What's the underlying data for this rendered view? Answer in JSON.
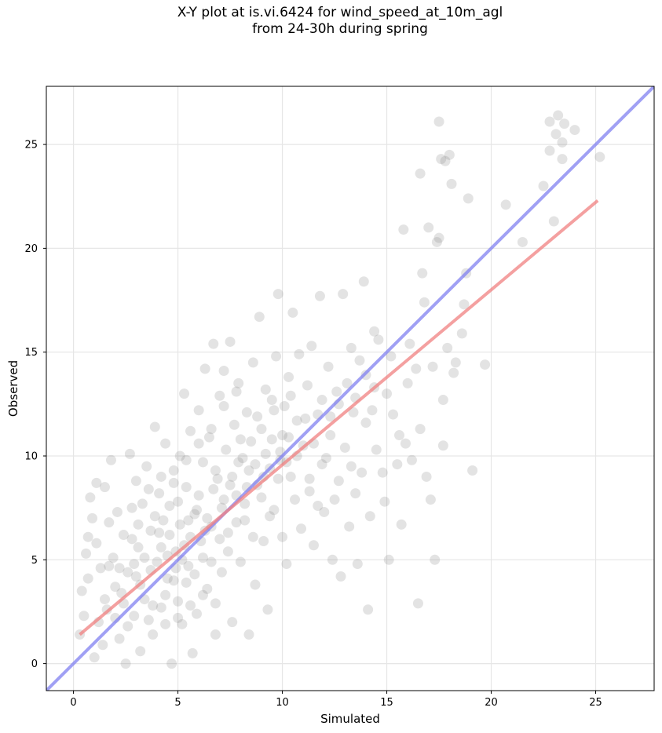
{
  "chart_data": {
    "type": "scatter",
    "title": "X-Y plot at is.vi.6424 for wind_speed_at_10m_agl\nfrom 24-30h during spring",
    "xlabel": "Simulated",
    "ylabel": "Observed",
    "xlim": [
      -1.3,
      27.8
    ],
    "ylim": [
      -1.3,
      27.8
    ],
    "xticks": [
      0,
      5,
      10,
      15,
      20,
      25
    ],
    "yticks": [
      0,
      5,
      10,
      15,
      20,
      25
    ],
    "grid": true,
    "legend": "none",
    "point_color": "#808080",
    "series": [
      {
        "points": [
          [
            0.3,
            1.4
          ],
          [
            0.4,
            3.5
          ],
          [
            0.5,
            2.3
          ],
          [
            0.6,
            5.3
          ],
          [
            0.7,
            6.1
          ],
          [
            0.8,
            8.0
          ],
          [
            0.9,
            7.0
          ],
          [
            1.0,
            0.3
          ],
          [
            1.1,
            8.7
          ],
          [
            1.3,
            4.6
          ],
          [
            1.5,
            8.5
          ],
          [
            1.6,
            2.6
          ],
          [
            1.7,
            6.8
          ],
          [
            1.8,
            9.8
          ],
          [
            2.0,
            3.7
          ],
          [
            2.1,
            7.3
          ],
          [
            2.2,
            1.2
          ],
          [
            2.4,
            6.2
          ],
          [
            2.5,
            0.0
          ],
          [
            2.6,
            4.4
          ],
          [
            2.7,
            10.1
          ],
          [
            2.9,
            2.3
          ],
          [
            3.0,
            8.8
          ],
          [
            3.1,
            5.6
          ],
          [
            3.2,
            0.6
          ],
          [
            3.3,
            7.7
          ],
          [
            3.4,
            3.1
          ],
          [
            3.5,
            9.5
          ],
          [
            3.7,
            6.4
          ],
          [
            3.8,
            1.4
          ],
          [
            3.9,
            11.4
          ],
          [
            4.0,
            4.9
          ],
          [
            4.1,
            8.2
          ],
          [
            4.2,
            2.7
          ],
          [
            4.3,
            6.9
          ],
          [
            4.4,
            10.6
          ],
          [
            4.5,
            4.1
          ],
          [
            4.6,
            7.6
          ],
          [
            4.7,
            0.0
          ],
          [
            4.8,
            9.3
          ],
          [
            4.9,
            5.4
          ],
          [
            5.0,
            3.0
          ],
          [
            5.1,
            10.0
          ],
          [
            5.1,
            6.7
          ],
          [
            5.2,
            1.9
          ],
          [
            5.3,
            13.0
          ],
          [
            5.4,
            8.5
          ],
          [
            5.5,
            4.7
          ],
          [
            5.6,
            11.2
          ],
          [
            5.7,
            0.5
          ],
          [
            5.8,
            7.2
          ],
          [
            5.9,
            2.4
          ],
          [
            6.0,
            12.2
          ],
          [
            6.1,
            5.9
          ],
          [
            6.2,
            9.7
          ],
          [
            6.3,
            14.2
          ],
          [
            6.4,
            3.6
          ],
          [
            6.5,
            10.9
          ],
          [
            6.6,
            6.6
          ],
          [
            6.7,
            15.4
          ],
          [
            6.8,
            1.4
          ],
          [
            6.9,
            8.9
          ],
          [
            7.0,
            12.9
          ],
          [
            7.1,
            4.4
          ],
          [
            7.2,
            14.1
          ],
          [
            7.3,
            10.3
          ],
          [
            7.4,
            6.3
          ],
          [
            7.5,
            15.5
          ],
          [
            7.6,
            2.0
          ],
          [
            7.7,
            11.5
          ],
          [
            7.8,
            8.1
          ],
          [
            7.9,
            13.5
          ],
          [
            8.0,
            4.9
          ],
          [
            8.1,
            9.9
          ],
          [
            8.2,
            6.9
          ],
          [
            8.3,
            12.1
          ],
          [
            8.4,
            1.4
          ],
          [
            8.5,
            10.7
          ],
          [
            8.6,
            14.5
          ],
          [
            8.7,
            3.8
          ],
          [
            8.8,
            8.6
          ],
          [
            8.9,
            16.7
          ],
          [
            9.0,
            11.3
          ],
          [
            9.1,
            5.9
          ],
          [
            9.2,
            13.2
          ],
          [
            9.3,
            2.6
          ],
          [
            9.4,
            9.4
          ],
          [
            9.5,
            12.7
          ],
          [
            9.6,
            7.4
          ],
          [
            9.7,
            14.8
          ],
          [
            9.8,
            17.8
          ],
          [
            9.9,
            10.2
          ],
          [
            10.0,
            6.1
          ],
          [
            10.1,
            12.4
          ],
          [
            10.2,
            4.8
          ],
          [
            10.3,
            13.8
          ],
          [
            10.4,
            9.0
          ],
          [
            10.5,
            16.9
          ],
          [
            10.6,
            7.9
          ],
          [
            10.7,
            11.7
          ],
          [
            10.8,
            14.9
          ],
          [
            10.9,
            6.5
          ],
          [
            11.0,
            10.5
          ],
          [
            11.2,
            13.4
          ],
          [
            11.3,
            8.3
          ],
          [
            11.4,
            15.3
          ],
          [
            11.5,
            5.7
          ],
          [
            11.7,
            12.0
          ],
          [
            11.8,
            17.7
          ],
          [
            11.9,
            9.6
          ],
          [
            12.0,
            7.3
          ],
          [
            12.2,
            14.3
          ],
          [
            12.3,
            11.0
          ],
          [
            12.4,
            5.0
          ],
          [
            12.6,
            13.1
          ],
          [
            12.7,
            8.8
          ],
          [
            12.8,
            4.2
          ],
          [
            12.9,
            17.8
          ],
          [
            13.0,
            10.4
          ],
          [
            13.2,
            6.6
          ],
          [
            13.3,
            15.2
          ],
          [
            13.4,
            12.1
          ],
          [
            13.5,
            8.2
          ],
          [
            13.6,
            4.8
          ],
          [
            13.7,
            14.6
          ],
          [
            13.8,
            9.2
          ],
          [
            13.9,
            18.4
          ],
          [
            14.0,
            11.6
          ],
          [
            14.1,
            2.6
          ],
          [
            14.2,
            7.1
          ],
          [
            14.3,
            12.2
          ],
          [
            14.4,
            16.0
          ],
          [
            14.5,
            10.3
          ],
          [
            14.6,
            15.6
          ],
          [
            14.8,
            9.2
          ],
          [
            14.9,
            7.8
          ],
          [
            15.0,
            13.0
          ],
          [
            15.1,
            5.0
          ],
          [
            15.2,
            14.8
          ],
          [
            15.3,
            12.0
          ],
          [
            15.5,
            9.6
          ],
          [
            15.6,
            11.0
          ],
          [
            15.7,
            6.7
          ],
          [
            15.8,
            20.9
          ],
          [
            15.9,
            10.6
          ],
          [
            16.0,
            13.5
          ],
          [
            16.1,
            15.4
          ],
          [
            16.2,
            9.8
          ],
          [
            16.4,
            14.2
          ],
          [
            16.5,
            2.9
          ],
          [
            16.6,
            11.3
          ],
          [
            16.6,
            23.6
          ],
          [
            16.7,
            18.8
          ],
          [
            16.8,
            17.4
          ],
          [
            16.9,
            9.0
          ],
          [
            17.0,
            21.0
          ],
          [
            17.1,
            7.9
          ],
          [
            17.2,
            14.3
          ],
          [
            17.3,
            5.0
          ],
          [
            17.4,
            20.3
          ],
          [
            17.5,
            26.1
          ],
          [
            17.5,
            20.5
          ],
          [
            17.6,
            24.3
          ],
          [
            17.7,
            10.5
          ],
          [
            17.7,
            12.7
          ],
          [
            17.8,
            24.2
          ],
          [
            17.9,
            15.2
          ],
          [
            18.0,
            24.5
          ],
          [
            18.1,
            23.1
          ],
          [
            18.2,
            14.0
          ],
          [
            18.3,
            14.5
          ],
          [
            18.6,
            15.9
          ],
          [
            18.7,
            17.3
          ],
          [
            18.8,
            18.8
          ],
          [
            18.9,
            22.4
          ],
          [
            19.1,
            9.3
          ],
          [
            19.7,
            14.4
          ],
          [
            20.7,
            22.1
          ],
          [
            21.5,
            20.3
          ],
          [
            22.5,
            23.0
          ],
          [
            22.8,
            26.1
          ],
          [
            22.8,
            24.7
          ],
          [
            23.0,
            21.3
          ],
          [
            23.1,
            25.5
          ],
          [
            23.2,
            26.4
          ],
          [
            23.4,
            24.3
          ],
          [
            23.4,
            25.1
          ],
          [
            23.5,
            26.0
          ],
          [
            24.0,
            25.7
          ],
          [
            25.2,
            24.4
          ],
          [
            1.2,
            2.0
          ],
          [
            1.9,
            5.1
          ],
          [
            2.3,
            3.4
          ],
          [
            2.8,
            6.0
          ],
          [
            3.0,
            4.2
          ],
          [
            3.4,
            5.1
          ],
          [
            3.6,
            2.1
          ],
          [
            3.9,
            7.1
          ],
          [
            4.2,
            5.6
          ],
          [
            4.4,
            3.3
          ],
          [
            4.6,
            6.2
          ],
          [
            4.8,
            4.0
          ],
          [
            5.0,
            7.8
          ],
          [
            5.2,
            5.0
          ],
          [
            5.4,
            3.9
          ],
          [
            5.6,
            6.1
          ],
          [
            5.8,
            4.3
          ],
          [
            6.0,
            8.1
          ],
          [
            6.2,
            5.1
          ],
          [
            6.4,
            7.0
          ],
          [
            6.6,
            4.9
          ],
          [
            6.8,
            9.3
          ],
          [
            7.0,
            6.0
          ],
          [
            7.2,
            7.9
          ],
          [
            7.4,
            5.4
          ],
          [
            7.6,
            9.0
          ],
          [
            7.8,
            6.8
          ],
          [
            8.0,
            10.8
          ],
          [
            8.2,
            7.7
          ],
          [
            8.4,
            9.3
          ],
          [
            8.6,
            6.1
          ],
          [
            8.8,
            11.9
          ],
          [
            9.0,
            8.0
          ],
          [
            9.2,
            10.1
          ],
          [
            9.4,
            7.1
          ],
          [
            9.6,
            12.2
          ],
          [
            9.8,
            8.9
          ],
          [
            10.0,
            11.0
          ],
          [
            10.2,
            9.7
          ],
          [
            10.4,
            12.9
          ],
          [
            1.4,
            0.9
          ],
          [
            2.0,
            2.2
          ],
          [
            2.6,
            1.8
          ],
          [
            3.2,
            3.8
          ],
          [
            3.8,
            2.8
          ],
          [
            4.4,
            1.9
          ],
          [
            5.0,
            2.2
          ],
          [
            5.6,
            2.8
          ],
          [
            6.2,
            3.3
          ],
          [
            6.8,
            2.9
          ],
          [
            2.2,
            4.6
          ],
          [
            2.8,
            7.5
          ],
          [
            3.6,
            8.4
          ],
          [
            4.2,
            9.0
          ],
          [
            4.8,
            8.7
          ],
          [
            5.4,
            9.8
          ],
          [
            6.0,
            10.6
          ],
          [
            6.6,
            11.3
          ],
          [
            7.2,
            12.4
          ],
          [
            7.8,
            13.1
          ],
          [
            0.7,
            4.1
          ],
          [
            1.1,
            5.8
          ],
          [
            1.5,
            3.1
          ],
          [
            1.7,
            4.7
          ],
          [
            2.4,
            2.9
          ],
          [
            2.9,
            4.8
          ],
          [
            3.1,
            6.7
          ],
          [
            3.7,
            4.5
          ],
          [
            4.1,
            6.3
          ],
          [
            4.5,
            5.2
          ],
          [
            4.9,
            4.6
          ],
          [
            5.3,
            5.7
          ],
          [
            5.5,
            6.9
          ],
          [
            5.9,
            7.4
          ],
          [
            6.3,
            6.4
          ],
          [
            6.7,
            8.4
          ],
          [
            7.1,
            7.5
          ],
          [
            7.5,
            8.6
          ],
          [
            7.9,
            9.7
          ],
          [
            8.3,
            8.5
          ],
          [
            8.7,
            9.6
          ],
          [
            9.1,
            9.0
          ],
          [
            9.5,
            10.8
          ],
          [
            9.9,
            9.8
          ],
          [
            10.3,
            10.9
          ],
          [
            10.7,
            10.0
          ],
          [
            11.1,
            11.8
          ],
          [
            11.5,
            10.6
          ],
          [
            11.9,
            12.7
          ],
          [
            12.3,
            11.9
          ],
          [
            12.7,
            12.5
          ],
          [
            13.1,
            13.5
          ],
          [
            13.5,
            12.8
          ],
          [
            14.0,
            13.9
          ],
          [
            14.4,
            13.3
          ],
          [
            11.3,
            8.9
          ],
          [
            11.7,
            7.6
          ],
          [
            12.1,
            9.9
          ],
          [
            12.5,
            7.9
          ],
          [
            13.3,
            9.5
          ]
        ]
      }
    ],
    "fit_line": {
      "color": "#f08080",
      "points": [
        [
          0.3,
          1.4
        ],
        [
          25.1,
          22.3
        ]
      ]
    },
    "identity_line": {
      "color": "#8080f0",
      "points": [
        [
          -1.3,
          -1.3
        ],
        [
          27.8,
          27.8
        ]
      ]
    }
  }
}
